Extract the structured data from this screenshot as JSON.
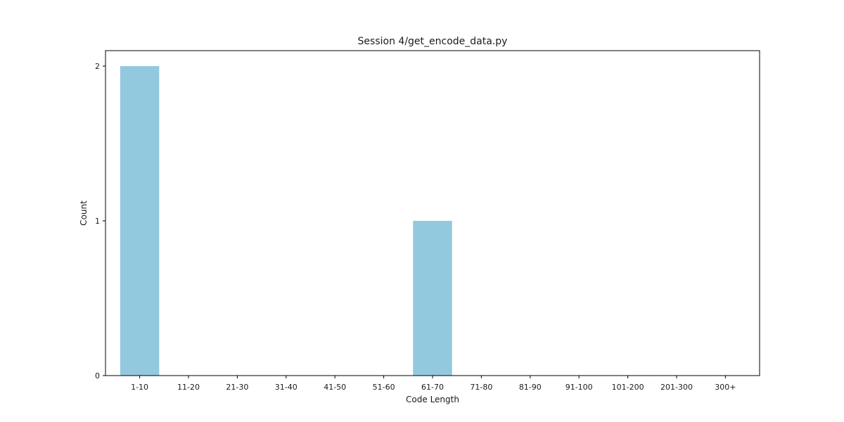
{
  "chart_data": {
    "type": "bar",
    "title": "Session 4/get_encode_data.py",
    "xlabel": "Code Length",
    "ylabel": "Count",
    "categories": [
      "1-10",
      "11-20",
      "21-30",
      "31-40",
      "41-50",
      "51-60",
      "61-70",
      "71-80",
      "81-90",
      "91-100",
      "101-200",
      "201-300",
      "300+"
    ],
    "values": [
      2,
      0,
      0,
      0,
      0,
      0,
      1,
      0,
      0,
      0,
      0,
      0,
      0
    ],
    "ylim": [
      0,
      2.1
    ],
    "yticks": [
      0,
      1,
      2
    ],
    "grid": false,
    "bar_color": "#92c9df"
  }
}
